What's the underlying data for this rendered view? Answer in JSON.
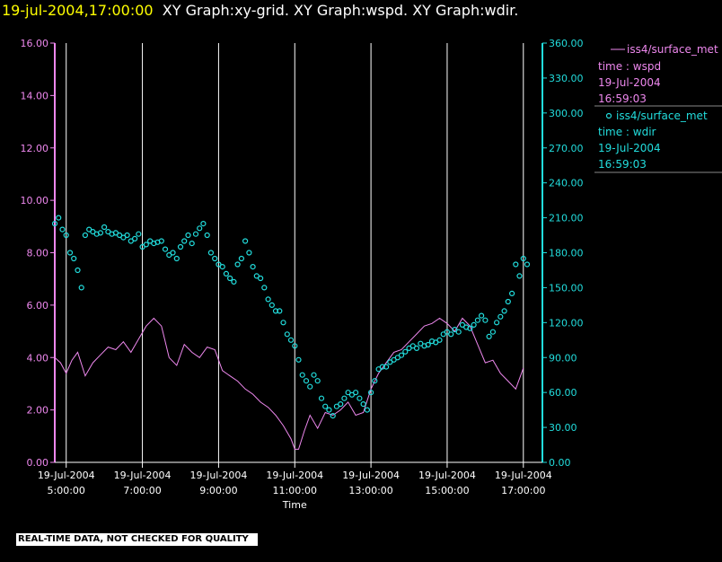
{
  "header": {
    "timestamp": "19-jul-2004,17:00:00",
    "graphs": "XY Graph:xy-grid.  XY Graph:wspd.  XY Graph:wdir."
  },
  "footer": {
    "quality_notice": "REAL-TIME DATA, NOT CHECKED FOR QUALITY"
  },
  "colors": {
    "background": "#000000",
    "wspd": "#ee88ee",
    "wdir": "#22dddd",
    "grid": "#ffffff",
    "axis_text": "#ffffff",
    "timestamp": "#ffff00"
  },
  "legend": {
    "entries": [
      {
        "series": "wspd",
        "symbol": "line",
        "lines": [
          "iss4/surface_met",
          "time : wspd",
          "19-Jul-2004",
          "16:59:03"
        ]
      },
      {
        "series": "wdir",
        "symbol": "circle",
        "lines": [
          "iss4/surface_met",
          "time : wdir",
          "19-Jul-2004",
          "16:59:03"
        ]
      }
    ]
  },
  "chart_data": {
    "type": "line",
    "xlabel": "Time",
    "x_range_hours": [
      4.7,
      17.5
    ],
    "x_ticks": [
      {
        "hour": 5,
        "date": "19-Jul-2004",
        "time": "5:00:00"
      },
      {
        "hour": 7,
        "date": "19-Jul-2004",
        "time": "7:00:00"
      },
      {
        "hour": 9,
        "date": "19-Jul-2004",
        "time": "9:00:00"
      },
      {
        "hour": 11,
        "date": "19-Jul-2004",
        "time": "11:00:00"
      },
      {
        "hour": 13,
        "date": "19-Jul-2004",
        "time": "13:00:00"
      },
      {
        "hour": 15,
        "date": "19-Jul-2004",
        "time": "15:00:00"
      },
      {
        "hour": 17,
        "date": "19-Jul-2004",
        "time": "17:00:00"
      }
    ],
    "grid_vertical": true,
    "y_left": {
      "range": [
        0,
        16
      ],
      "ticks": [
        "0.00",
        "2.00",
        "4.00",
        "6.00",
        "8.00",
        "10.00",
        "12.00",
        "14.00",
        "16.00"
      ]
    },
    "y_right": {
      "range": [
        0,
        360
      ],
      "ticks": [
        "0.00",
        "30.00",
        "60.00",
        "90.00",
        "120.00",
        "150.00",
        "180.00",
        "210.00",
        "240.00",
        "270.00",
        "300.00",
        "330.00",
        "360.00"
      ]
    },
    "series": [
      {
        "name": "iss4/surface_met time : wspd",
        "axis": "left",
        "style": "line",
        "x": [
          4.7,
          4.85,
          5.0,
          5.15,
          5.3,
          5.5,
          5.7,
          5.9,
          6.1,
          6.3,
          6.5,
          6.7,
          6.9,
          7.1,
          7.3,
          7.5,
          7.7,
          7.9,
          8.1,
          8.3,
          8.5,
          8.7,
          8.9,
          9.1,
          9.3,
          9.5,
          9.7,
          9.9,
          10.1,
          10.3,
          10.5,
          10.7,
          10.9,
          11.0,
          11.1,
          11.25,
          11.4,
          11.6,
          11.8,
          12.0,
          12.2,
          12.4,
          12.6,
          12.8,
          13.0,
          13.2,
          13.4,
          13.6,
          13.8,
          14.0,
          14.2,
          14.4,
          14.6,
          14.8,
          15.0,
          15.2,
          15.4,
          15.6,
          15.8,
          16.0,
          16.2,
          16.4,
          16.6,
          16.8,
          17.0
        ],
        "y": [
          4.0,
          3.8,
          3.4,
          3.9,
          4.2,
          3.3,
          3.8,
          4.1,
          4.4,
          4.3,
          4.6,
          4.2,
          4.7,
          5.2,
          5.5,
          5.2,
          4.0,
          3.7,
          4.5,
          4.2,
          4.0,
          4.4,
          4.3,
          3.5,
          3.3,
          3.1,
          2.8,
          2.6,
          2.3,
          2.1,
          1.8,
          1.4,
          0.9,
          0.5,
          0.5,
          1.2,
          1.8,
          1.3,
          1.9,
          1.8,
          2.0,
          2.3,
          1.8,
          1.9,
          2.8,
          3.4,
          3.8,
          4.2,
          4.3,
          4.6,
          4.9,
          5.2,
          5.3,
          5.5,
          5.3,
          5.0,
          5.5,
          5.2,
          4.5,
          3.8,
          3.9,
          3.4,
          3.1,
          2.8,
          3.6
        ]
      },
      {
        "name": "iss4/surface_met time : wdir",
        "axis": "right",
        "style": "scatter",
        "x": [
          4.7,
          4.8,
          4.9,
          5.0,
          5.1,
          5.2,
          5.3,
          5.4,
          5.5,
          5.6,
          5.7,
          5.8,
          5.9,
          6.0,
          6.1,
          6.2,
          6.3,
          6.4,
          6.5,
          6.6,
          6.7,
          6.8,
          6.9,
          7.0,
          7.1,
          7.2,
          7.3,
          7.4,
          7.5,
          7.6,
          7.7,
          7.8,
          7.9,
          8.0,
          8.1,
          8.2,
          8.3,
          8.4,
          8.5,
          8.6,
          8.7,
          8.8,
          8.9,
          9.0,
          9.1,
          9.2,
          9.3,
          9.4,
          9.5,
          9.6,
          9.7,
          9.8,
          9.9,
          10.0,
          10.1,
          10.2,
          10.3,
          10.4,
          10.5,
          10.6,
          10.7,
          10.8,
          10.9,
          11.0,
          11.1,
          11.2,
          11.3,
          11.4,
          11.5,
          11.6,
          11.7,
          11.8,
          11.9,
          12.0,
          12.1,
          12.2,
          12.3,
          12.4,
          12.5,
          12.6,
          12.7,
          12.8,
          12.9,
          13.0,
          13.1,
          13.2,
          13.3,
          13.4,
          13.5,
          13.6,
          13.7,
          13.8,
          13.9,
          14.0,
          14.1,
          14.2,
          14.3,
          14.4,
          14.5,
          14.6,
          14.7,
          14.8,
          14.9,
          15.0,
          15.1,
          15.2,
          15.3,
          15.4,
          15.5,
          15.6,
          15.7,
          15.8,
          15.9,
          16.0,
          16.1,
          16.2,
          16.3,
          16.4,
          16.5,
          16.6,
          16.7,
          16.8,
          16.9,
          17.0,
          17.1
        ],
        "y": [
          205,
          210,
          200,
          195,
          180,
          175,
          165,
          150,
          195,
          200,
          198,
          196,
          197,
          202,
          198,
          196,
          197,
          195,
          193,
          195,
          190,
          192,
          196,
          185,
          187,
          190,
          188,
          189,
          190,
          183,
          178,
          180,
          175,
          185,
          190,
          195,
          188,
          196,
          201,
          205,
          195,
          180,
          175,
          170,
          168,
          162,
          158,
          155,
          170,
          175,
          190,
          180,
          168,
          160,
          158,
          150,
          140,
          135,
          130,
          130,
          120,
          110,
          105,
          100,
          88,
          75,
          70,
          65,
          75,
          70,
          55,
          48,
          45,
          40,
          48,
          50,
          55,
          60,
          58,
          60,
          55,
          50,
          45,
          60,
          70,
          80,
          82,
          82,
          86,
          88,
          90,
          92,
          95,
          98,
          100,
          98,
          102,
          100,
          101,
          104,
          103,
          105,
          110,
          112,
          110,
          114,
          112,
          118,
          116,
          115,
          118,
          122,
          126,
          122,
          108,
          112,
          120,
          125,
          130,
          138,
          145,
          170,
          160,
          175,
          170
        ]
      }
    ]
  }
}
